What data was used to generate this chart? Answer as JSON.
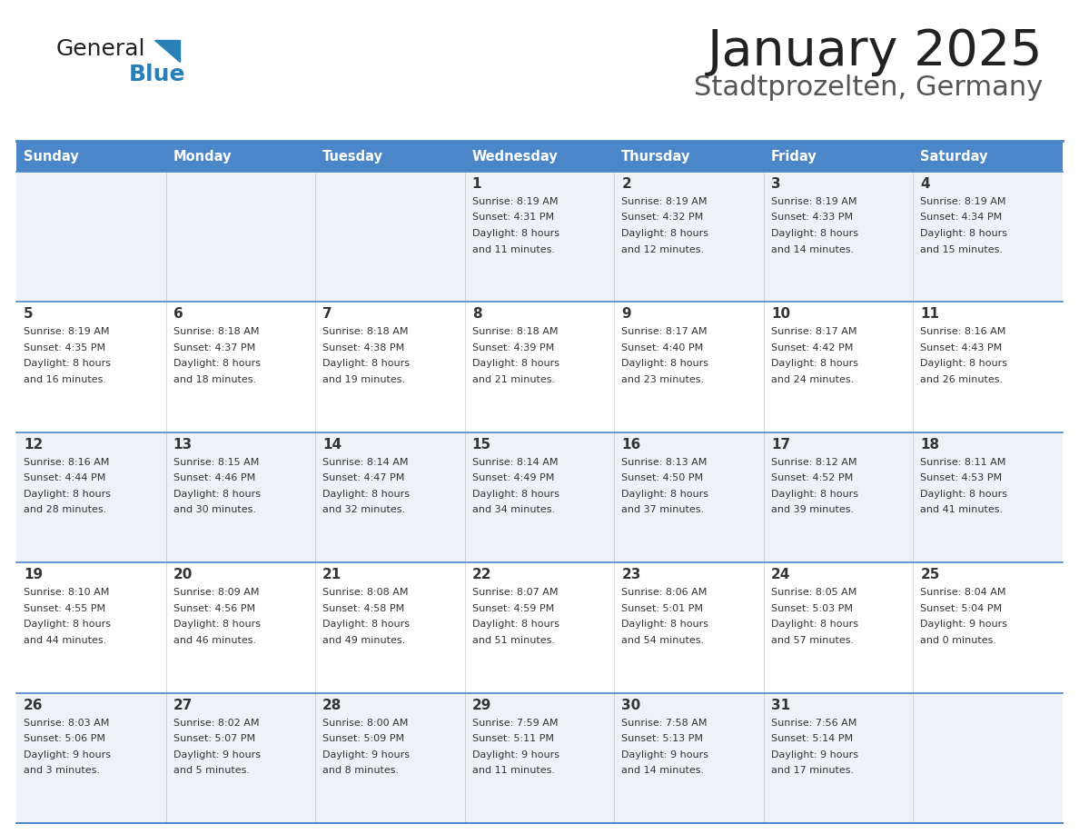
{
  "title": "January 2025",
  "subtitle": "Stadtprozelten, Germany",
  "days_of_week": [
    "Sunday",
    "Monday",
    "Tuesday",
    "Wednesday",
    "Thursday",
    "Friday",
    "Saturday"
  ],
  "header_bg": "#4a86c8",
  "header_text_color": "#ffffff",
  "row_bg_light": "#eef2f7",
  "row_bg_white": "#ffffff",
  "divider_color": "#4a86c8",
  "text_color": "#333333",
  "day_num_color": "#333333",
  "title_color": "#222222",
  "subtitle_color": "#555555",
  "logo_general_color": "#222222",
  "logo_blue_color": "#2980b9",
  "logo_triangle_color": "#2980b9",
  "calendar": [
    [
      {
        "day": "",
        "sunrise": "",
        "sunset": "",
        "daylight_h": "",
        "daylight_m": ""
      },
      {
        "day": "",
        "sunrise": "",
        "sunset": "",
        "daylight_h": "",
        "daylight_m": ""
      },
      {
        "day": "",
        "sunrise": "",
        "sunset": "",
        "daylight_h": "",
        "daylight_m": ""
      },
      {
        "day": "1",
        "sunrise": "8:19 AM",
        "sunset": "4:31 PM",
        "daylight_h": "8",
        "daylight_m": "11"
      },
      {
        "day": "2",
        "sunrise": "8:19 AM",
        "sunset": "4:32 PM",
        "daylight_h": "8",
        "daylight_m": "12"
      },
      {
        "day": "3",
        "sunrise": "8:19 AM",
        "sunset": "4:33 PM",
        "daylight_h": "8",
        "daylight_m": "14"
      },
      {
        "day": "4",
        "sunrise": "8:19 AM",
        "sunset": "4:34 PM",
        "daylight_h": "8",
        "daylight_m": "15"
      }
    ],
    [
      {
        "day": "5",
        "sunrise": "8:19 AM",
        "sunset": "4:35 PM",
        "daylight_h": "8",
        "daylight_m": "16"
      },
      {
        "day": "6",
        "sunrise": "8:18 AM",
        "sunset": "4:37 PM",
        "daylight_h": "8",
        "daylight_m": "18"
      },
      {
        "day": "7",
        "sunrise": "8:18 AM",
        "sunset": "4:38 PM",
        "daylight_h": "8",
        "daylight_m": "19"
      },
      {
        "day": "8",
        "sunrise": "8:18 AM",
        "sunset": "4:39 PM",
        "daylight_h": "8",
        "daylight_m": "21"
      },
      {
        "day": "9",
        "sunrise": "8:17 AM",
        "sunset": "4:40 PM",
        "daylight_h": "8",
        "daylight_m": "23"
      },
      {
        "day": "10",
        "sunrise": "8:17 AM",
        "sunset": "4:42 PM",
        "daylight_h": "8",
        "daylight_m": "24"
      },
      {
        "day": "11",
        "sunrise": "8:16 AM",
        "sunset": "4:43 PM",
        "daylight_h": "8",
        "daylight_m": "26"
      }
    ],
    [
      {
        "day": "12",
        "sunrise": "8:16 AM",
        "sunset": "4:44 PM",
        "daylight_h": "8",
        "daylight_m": "28"
      },
      {
        "day": "13",
        "sunrise": "8:15 AM",
        "sunset": "4:46 PM",
        "daylight_h": "8",
        "daylight_m": "30"
      },
      {
        "day": "14",
        "sunrise": "8:14 AM",
        "sunset": "4:47 PM",
        "daylight_h": "8",
        "daylight_m": "32"
      },
      {
        "day": "15",
        "sunrise": "8:14 AM",
        "sunset": "4:49 PM",
        "daylight_h": "8",
        "daylight_m": "34"
      },
      {
        "day": "16",
        "sunrise": "8:13 AM",
        "sunset": "4:50 PM",
        "daylight_h": "8",
        "daylight_m": "37"
      },
      {
        "day": "17",
        "sunrise": "8:12 AM",
        "sunset": "4:52 PM",
        "daylight_h": "8",
        "daylight_m": "39"
      },
      {
        "day": "18",
        "sunrise": "8:11 AM",
        "sunset": "4:53 PM",
        "daylight_h": "8",
        "daylight_m": "41"
      }
    ],
    [
      {
        "day": "19",
        "sunrise": "8:10 AM",
        "sunset": "4:55 PM",
        "daylight_h": "8",
        "daylight_m": "44"
      },
      {
        "day": "20",
        "sunrise": "8:09 AM",
        "sunset": "4:56 PM",
        "daylight_h": "8",
        "daylight_m": "46"
      },
      {
        "day": "21",
        "sunrise": "8:08 AM",
        "sunset": "4:58 PM",
        "daylight_h": "8",
        "daylight_m": "49"
      },
      {
        "day": "22",
        "sunrise": "8:07 AM",
        "sunset": "4:59 PM",
        "daylight_h": "8",
        "daylight_m": "51"
      },
      {
        "day": "23",
        "sunrise": "8:06 AM",
        "sunset": "5:01 PM",
        "daylight_h": "8",
        "daylight_m": "54"
      },
      {
        "day": "24",
        "sunrise": "8:05 AM",
        "sunset": "5:03 PM",
        "daylight_h": "8",
        "daylight_m": "57"
      },
      {
        "day": "25",
        "sunrise": "8:04 AM",
        "sunset": "5:04 PM",
        "daylight_h": "9",
        "daylight_m": "0"
      }
    ],
    [
      {
        "day": "26",
        "sunrise": "8:03 AM",
        "sunset": "5:06 PM",
        "daylight_h": "9",
        "daylight_m": "3"
      },
      {
        "day": "27",
        "sunrise": "8:02 AM",
        "sunset": "5:07 PM",
        "daylight_h": "9",
        "daylight_m": "5"
      },
      {
        "day": "28",
        "sunrise": "8:00 AM",
        "sunset": "5:09 PM",
        "daylight_h": "9",
        "daylight_m": "8"
      },
      {
        "day": "29",
        "sunrise": "7:59 AM",
        "sunset": "5:11 PM",
        "daylight_h": "9",
        "daylight_m": "11"
      },
      {
        "day": "30",
        "sunrise": "7:58 AM",
        "sunset": "5:13 PM",
        "daylight_h": "9",
        "daylight_m": "14"
      },
      {
        "day": "31",
        "sunrise": "7:56 AM",
        "sunset": "5:14 PM",
        "daylight_h": "9",
        "daylight_m": "17"
      },
      {
        "day": "",
        "sunrise": "",
        "sunset": "",
        "daylight_h": "",
        "daylight_m": ""
      }
    ]
  ]
}
